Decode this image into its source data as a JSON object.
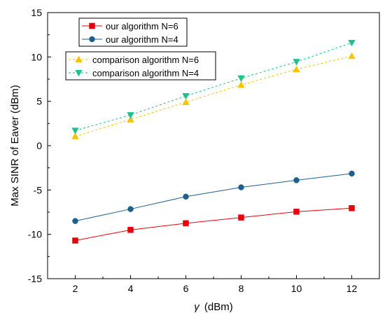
{
  "chart_data": {
    "type": "line",
    "xlabel_symbol": "γ",
    "xlabel_unit": "(dBm)",
    "ylabel": "Max SINR of Eaver (dBm)",
    "xlim": [
      1,
      13
    ],
    "ylim": [
      -15,
      15
    ],
    "x_ticks": [
      2,
      4,
      6,
      8,
      10,
      12
    ],
    "y_ticks": [
      -15,
      -10,
      -5,
      0,
      5,
      10,
      15
    ],
    "x": [
      2,
      4,
      6,
      8,
      10,
      12
    ],
    "grid": false,
    "series": [
      {
        "name": "our algorithm N=6",
        "values": [
          -10.7,
          -9.5,
          -8.75,
          -8.1,
          -7.45,
          -7.05
        ],
        "color": "#e8000b",
        "marker": "square",
        "dashed": false,
        "legend_group": 0
      },
      {
        "name": "our algorithm N=4",
        "values": [
          -8.5,
          -7.15,
          -5.75,
          -4.7,
          -3.9,
          -3.15
        ],
        "color": "#1f5f8b",
        "marker": "circle",
        "dashed": false,
        "legend_group": 0
      },
      {
        "name": "comparison algorithm N=6",
        "values": [
          1.05,
          2.95,
          4.9,
          6.85,
          8.6,
          10.1
        ],
        "color": "#f5c400",
        "marker": "triangle-up",
        "dashed": true,
        "legend_group": 1
      },
      {
        "name": "comparison algorithm N=4",
        "values": [
          1.7,
          3.45,
          5.6,
          7.6,
          9.45,
          11.6
        ],
        "color": "#1fbf8f",
        "marker": "triangle-down",
        "dashed": true,
        "legend_group": 1
      }
    ]
  }
}
